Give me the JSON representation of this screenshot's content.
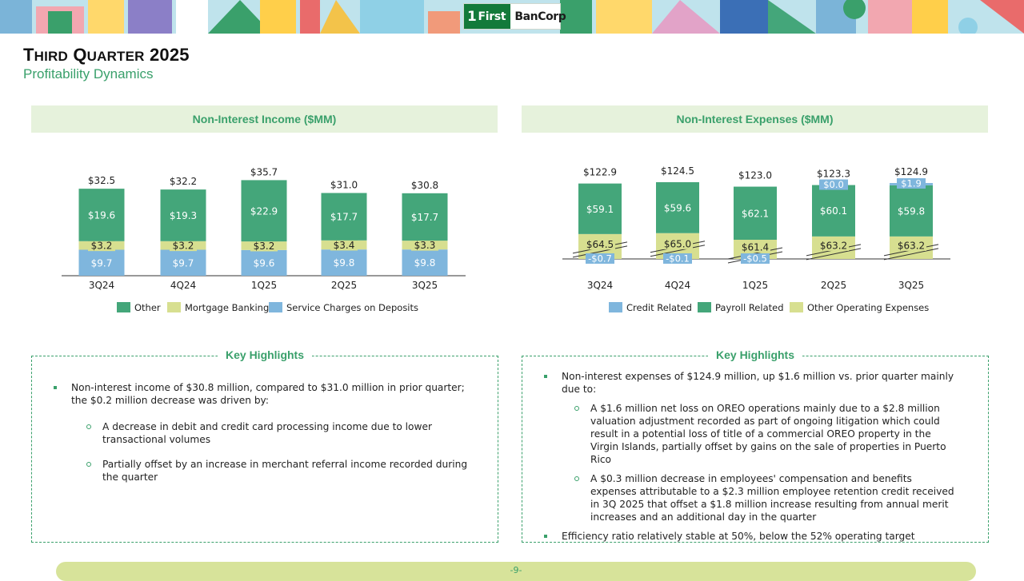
{
  "header": {
    "logo_mark": "1",
    "logo_first": "First",
    "logo_name": "BanCorp",
    "title_big1": "T",
    "title_small1": "HIRD",
    "title_big2": "Q",
    "title_small2": "UARTER",
    "title_year": "2025",
    "subtitle": "Profitability Dynamics"
  },
  "colors": {
    "accent": "#3aa06b",
    "other": "#44a67a",
    "mortgage": "#d7df90",
    "service": "#7fb6dd",
    "credit": "#7fb6dd",
    "payroll": "#44a67a",
    "other_opex": "#d7df90"
  },
  "chart_data": [
    {
      "type": "bar",
      "stacked": true,
      "title": "Non-Interest Income ($MM)",
      "categories": [
        "3Q24",
        "4Q24",
        "1Q25",
        "2Q25",
        "3Q25"
      ],
      "series": [
        {
          "name": "Service Charges on Deposits",
          "values": [
            9.7,
            9.7,
            9.6,
            9.8,
            9.8
          ],
          "labels": [
            "$9.7",
            "$9.7",
            "$9.6",
            "$9.8",
            "$9.8"
          ]
        },
        {
          "name": "Mortgage Banking",
          "values": [
            3.2,
            3.2,
            3.2,
            3.4,
            3.3
          ],
          "labels": [
            "$3.2",
            "$3.2",
            "$3.2",
            "$3.4",
            "$3.3"
          ]
        },
        {
          "name": "Other",
          "values": [
            19.6,
            19.3,
            22.9,
            17.7,
            17.7
          ],
          "labels": [
            "$19.6",
            "$19.3",
            "$22.9",
            "$17.7",
            "$17.7"
          ]
        }
      ],
      "totals": [
        32.5,
        32.2,
        35.7,
        31.0,
        30.8
      ],
      "total_labels": [
        "$32.5",
        "$32.2",
        "$35.7",
        "$31.0",
        "$30.8"
      ],
      "legend": [
        "Other",
        "Mortgage Banking",
        "Service Charges on Deposits"
      ],
      "legend_position": "bottom"
    },
    {
      "type": "bar",
      "stacked": true,
      "title": "Non-Interest Expenses ($MM)",
      "categories": [
        "3Q24",
        "4Q24",
        "1Q25",
        "2Q25",
        "3Q25"
      ],
      "axis_break": true,
      "series": [
        {
          "name": "Credit Related",
          "values": [
            -0.7,
            -0.1,
            -0.5,
            0.0,
            1.9
          ],
          "labels": [
            "-$0.7",
            "-$0.1",
            "-$0.5",
            "$0.0",
            "$1.9"
          ]
        },
        {
          "name": "Payroll Related",
          "values": [
            59.1,
            59.6,
            62.1,
            60.1,
            59.8
          ],
          "labels": [
            "$59.1",
            "$59.6",
            "$62.1",
            "$60.1",
            "$59.8"
          ]
        },
        {
          "name": "Other Operating Expenses",
          "values": [
            64.5,
            65.0,
            61.4,
            63.2,
            63.2
          ],
          "labels": [
            "$64.5",
            "$65.0",
            "$61.4",
            "$63.2",
            "$63.2"
          ]
        }
      ],
      "totals": [
        122.9,
        124.5,
        123.0,
        123.3,
        124.9
      ],
      "total_labels": [
        "$122.9",
        "$124.5",
        "$123.0",
        "$123.3",
        "$124.9"
      ],
      "legend": [
        "Credit Related",
        "Payroll Related",
        "Other Operating Expenses"
      ],
      "legend_position": "bottom"
    }
  ],
  "left_highlights": {
    "title": "Key Highlights",
    "bullet": "Non-interest income of $30.8 million, compared to $31.0 million in prior quarter; the $0.2 million decrease was driven by:",
    "subs": [
      "A decrease in debit and credit card processing income due to lower transactional volumes",
      "Partially offset by an increase in merchant referral income recorded during the quarter"
    ]
  },
  "right_highlights": {
    "title": "Key Highlights",
    "bullet1": "Non-interest expenses of $124.9 million, up $1.6 million vs. prior quarter mainly due to:",
    "subs": [
      "A $1.6 million net loss on OREO operations mainly due to a $2.8 million valuation adjustment recorded as part of ongoing litigation which could result in a potential loss of title of a commercial OREO property in the Virgin Islands, partially offset by gains on the sale of properties in Puerto Rico",
      "A $0.3 million decrease in employees' compensation and benefits expenses attributable to a $2.3 million employee retention credit received in 3Q 2025 that offset a $1.8 million increase resulting from annual merit increases and an additional day in the quarter"
    ],
    "bullet2": "Efficiency ratio relatively stable at 50%, below the 52% operating target"
  },
  "footer": {
    "page": "-9-"
  }
}
